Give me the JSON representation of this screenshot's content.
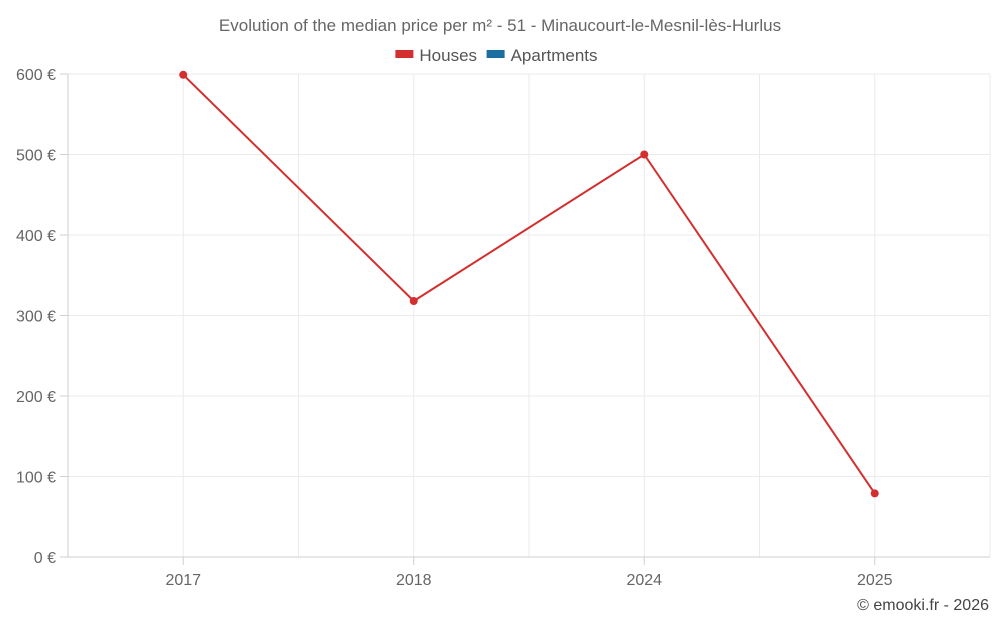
{
  "chart_data": {
    "type": "line",
    "title": "Evolution of the median price per m² - 51 - Minaucourt-le-Mesnil-lès-Hurlus",
    "categories": [
      "2017",
      "2018",
      "2024",
      "2025"
    ],
    "series": [
      {
        "name": "Houses",
        "color": "#d32f2f",
        "values": [
          599,
          318,
          500,
          79
        ]
      },
      {
        "name": "Apartments",
        "color": "#1a6fa0",
        "values": [
          null,
          null,
          null,
          null
        ]
      }
    ],
    "y_ticks": [
      0,
      100,
      200,
      300,
      400,
      500,
      600
    ],
    "y_tick_labels": [
      "0 €",
      "100 €",
      "200 €",
      "300 €",
      "400 €",
      "500 €",
      "600 €"
    ],
    "ylim": [
      0,
      600
    ],
    "xlabel": "",
    "ylabel": "",
    "grid": true,
    "legend_position": "top"
  },
  "credit": "© emooki.fr - 2026"
}
